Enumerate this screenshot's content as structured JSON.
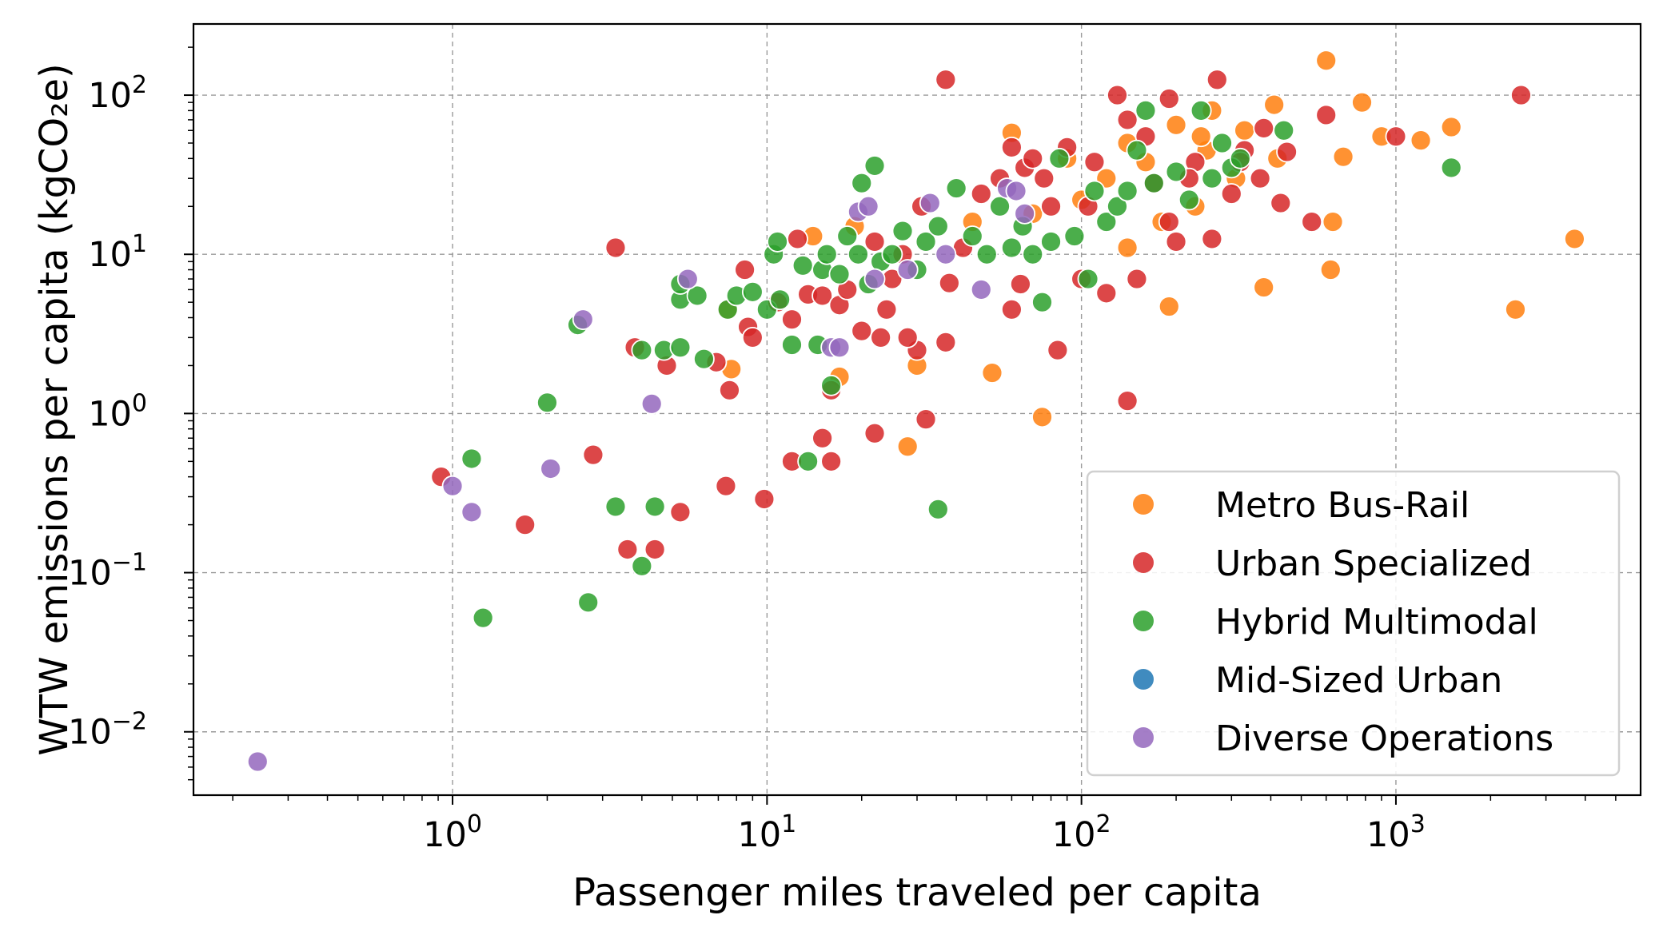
{
  "chart_data": {
    "type": "scatter",
    "xlabel": "Passenger miles traveled per capita",
    "ylabel": "WTW emissions per capita (kgCO₂e)",
    "xscale": "log",
    "yscale": "log",
    "xlim": [
      0.15,
      6000
    ],
    "ylim": [
      0.004,
      280
    ],
    "grid": true,
    "legend_position": "lower-right",
    "x_ticks": [
      {
        "value": 1,
        "base": "10",
        "exp": "0"
      },
      {
        "value": 10,
        "base": "10",
        "exp": "1"
      },
      {
        "value": 100,
        "base": "10",
        "exp": "2"
      },
      {
        "value": 1000,
        "base": "10",
        "exp": "3"
      }
    ],
    "y_ticks": [
      {
        "value": 0.01,
        "base": "10",
        "exp": "−2"
      },
      {
        "value": 0.1,
        "base": "10",
        "exp": "−1"
      },
      {
        "value": 1,
        "base": "10",
        "exp": "0"
      },
      {
        "value": 10,
        "base": "10",
        "exp": "1"
      },
      {
        "value": 100,
        "base": "10",
        "exp": "2"
      }
    ],
    "series": [
      {
        "name": "Metro Bus-Rail",
        "color": "#ff7f0e",
        "points": [
          [
            600,
            165
          ],
          [
            780,
            90
          ],
          [
            900,
            55
          ],
          [
            1200,
            52
          ],
          [
            1500,
            63
          ],
          [
            680,
            41
          ],
          [
            630,
            16
          ],
          [
            620,
            8
          ],
          [
            380,
            6.2
          ],
          [
            3700,
            12.5
          ],
          [
            2400,
            4.5
          ],
          [
            190,
            4.7
          ],
          [
            140,
            11
          ],
          [
            260,
            80
          ],
          [
            140,
            50
          ],
          [
            60,
            58
          ],
          [
            75,
            0.95
          ],
          [
            52,
            1.8
          ],
          [
            30,
            2.0
          ],
          [
            28,
            0.62
          ],
          [
            7.5,
            4.5
          ],
          [
            7.7,
            1.9
          ],
          [
            17,
            1.7
          ],
          [
            14,
            13
          ],
          [
            19,
            15
          ],
          [
            410,
            87
          ],
          [
            420,
            40
          ],
          [
            330,
            60
          ],
          [
            310,
            30
          ],
          [
            250,
            45
          ],
          [
            230,
            20
          ],
          [
            200,
            65
          ],
          [
            180,
            16
          ],
          [
            160,
            38
          ],
          [
            120,
            30
          ],
          [
            100,
            22
          ],
          [
            90,
            40
          ],
          [
            70,
            18
          ],
          [
            45,
            16
          ],
          [
            240,
            55
          ]
        ]
      },
      {
        "name": "Urban Specialized",
        "color": "#d62728",
        "points": [
          [
            37,
            125
          ],
          [
            270,
            125
          ],
          [
            2500,
            100
          ],
          [
            130,
            100
          ],
          [
            190,
            95
          ],
          [
            140,
            70
          ],
          [
            600,
            75
          ],
          [
            1000,
            55
          ],
          [
            540,
            16
          ],
          [
            430,
            21
          ],
          [
            370,
            30
          ],
          [
            330,
            45
          ],
          [
            300,
            24
          ],
          [
            260,
            12.5
          ],
          [
            200,
            12
          ],
          [
            190,
            16
          ],
          [
            150,
            7
          ],
          [
            120,
            5.7
          ],
          [
            100,
            7
          ],
          [
            140,
            1.2
          ],
          [
            84,
            2.5
          ],
          [
            64,
            6.5
          ],
          [
            60,
            4.5
          ],
          [
            38,
            6.6
          ],
          [
            37,
            2.8
          ],
          [
            32,
            0.92
          ],
          [
            30,
            2.5
          ],
          [
            28,
            3
          ],
          [
            23,
            3
          ],
          [
            20,
            3.3
          ],
          [
            22,
            0.75
          ],
          [
            16,
            0.5
          ],
          [
            15,
            0.7
          ],
          [
            12,
            0.5
          ],
          [
            9.8,
            0.29
          ],
          [
            7.4,
            0.35
          ],
          [
            4.4,
            0.14
          ],
          [
            3.6,
            0.14
          ],
          [
            5.3,
            0.24
          ],
          [
            2.8,
            0.55
          ],
          [
            1.7,
            0.2
          ],
          [
            0.92,
            0.4
          ],
          [
            3.3,
            11
          ],
          [
            3.8,
            2.6
          ],
          [
            4.8,
            2
          ],
          [
            6.9,
            2.1
          ],
          [
            7.6,
            1.4
          ],
          [
            8.7,
            3.5
          ],
          [
            9,
            3
          ],
          [
            8.5,
            8
          ],
          [
            10.8,
            5
          ],
          [
            12,
            3.9
          ],
          [
            12.5,
            12.5
          ],
          [
            13.5,
            5.6
          ],
          [
            15,
            5.5
          ],
          [
            16,
            1.4
          ],
          [
            17,
            4.8
          ],
          [
            18,
            6
          ],
          [
            25,
            7
          ],
          [
            22,
            12
          ],
          [
            24,
            4.5
          ],
          [
            27,
            10
          ],
          [
            31,
            20
          ],
          [
            42,
            11
          ],
          [
            48,
            24
          ],
          [
            55,
            30
          ],
          [
            60,
            47
          ],
          [
            66,
            35
          ],
          [
            76,
            30
          ],
          [
            80,
            20
          ],
          [
            90,
            47
          ],
          [
            105,
            20
          ],
          [
            110,
            38
          ],
          [
            160,
            55
          ],
          [
            230,
            38
          ],
          [
            320,
            38
          ],
          [
            380,
            62
          ],
          [
            450,
            44
          ],
          [
            220,
            30
          ],
          [
            170,
            28
          ],
          [
            70,
            40
          ]
        ]
      },
      {
        "name": "Hybrid Multimodal",
        "color": "#2ca02c",
        "points": [
          [
            1500,
            35
          ],
          [
            35,
            0.25
          ],
          [
            13.5,
            0.5
          ],
          [
            2.7,
            0.065
          ],
          [
            1.25,
            0.052
          ],
          [
            1.15,
            0.52
          ],
          [
            3.3,
            0.26
          ],
          [
            4.4,
            0.26
          ],
          [
            4,
            0.11
          ],
          [
            2,
            1.17
          ],
          [
            2.5,
            3.6
          ],
          [
            4,
            2.5
          ],
          [
            4.7,
            2.5
          ],
          [
            5.3,
            2.6
          ],
          [
            6.3,
            2.2
          ],
          [
            5.3,
            5.2
          ],
          [
            5.3,
            6.5
          ],
          [
            6,
            5.5
          ],
          [
            7.5,
            4.5
          ],
          [
            8,
            5.5
          ],
          [
            9,
            5.8
          ],
          [
            10,
            4.5
          ],
          [
            11,
            5.2
          ],
          [
            10.5,
            10
          ],
          [
            10.8,
            12
          ],
          [
            13,
            8.5
          ],
          [
            12,
            2.7
          ],
          [
            14.5,
            2.7
          ],
          [
            16,
            1.5
          ],
          [
            15,
            8
          ],
          [
            15.5,
            10
          ],
          [
            17,
            7.5
          ],
          [
            18,
            13
          ],
          [
            20,
            28
          ],
          [
            22,
            36
          ],
          [
            19.5,
            10
          ],
          [
            21,
            6.5
          ],
          [
            23,
            9
          ],
          [
            25,
            10
          ],
          [
            27,
            14
          ],
          [
            30,
            8
          ],
          [
            32,
            12
          ],
          [
            35,
            15
          ],
          [
            40,
            26
          ],
          [
            45,
            13
          ],
          [
            50,
            10
          ],
          [
            55,
            20
          ],
          [
            60,
            11
          ],
          [
            65,
            15
          ],
          [
            70,
            10
          ],
          [
            75,
            5
          ],
          [
            80,
            12
          ],
          [
            85,
            40
          ],
          [
            95,
            13
          ],
          [
            105,
            7
          ],
          [
            110,
            25
          ],
          [
            120,
            16
          ],
          [
            130,
            20
          ],
          [
            140,
            25
          ],
          [
            150,
            45
          ],
          [
            160,
            80
          ],
          [
            170,
            28
          ],
          [
            200,
            33
          ],
          [
            220,
            22
          ],
          [
            240,
            80
          ],
          [
            260,
            30
          ],
          [
            280,
            50
          ],
          [
            300,
            35
          ],
          [
            320,
            40
          ],
          [
            440,
            60
          ]
        ]
      },
      {
        "name": "Mid-Sized Urban",
        "color": "#1f77b4",
        "points": []
      },
      {
        "name": "Diverse Operations",
        "color": "#9467bd",
        "points": [
          [
            0.24,
            0.0065
          ],
          [
            1.0,
            0.35
          ],
          [
            1.15,
            0.24
          ],
          [
            2.05,
            0.45
          ],
          [
            2.6,
            3.9
          ],
          [
            4.3,
            1.15
          ],
          [
            5.6,
            7
          ],
          [
            16,
            2.6
          ],
          [
            17,
            2.6
          ],
          [
            19.5,
            18.5
          ],
          [
            21,
            20
          ],
          [
            22,
            7
          ],
          [
            28,
            8
          ],
          [
            33,
            21
          ],
          [
            37,
            10
          ],
          [
            48,
            6
          ],
          [
            58,
            26
          ],
          [
            62,
            25
          ],
          [
            66,
            18
          ]
        ]
      }
    ]
  }
}
